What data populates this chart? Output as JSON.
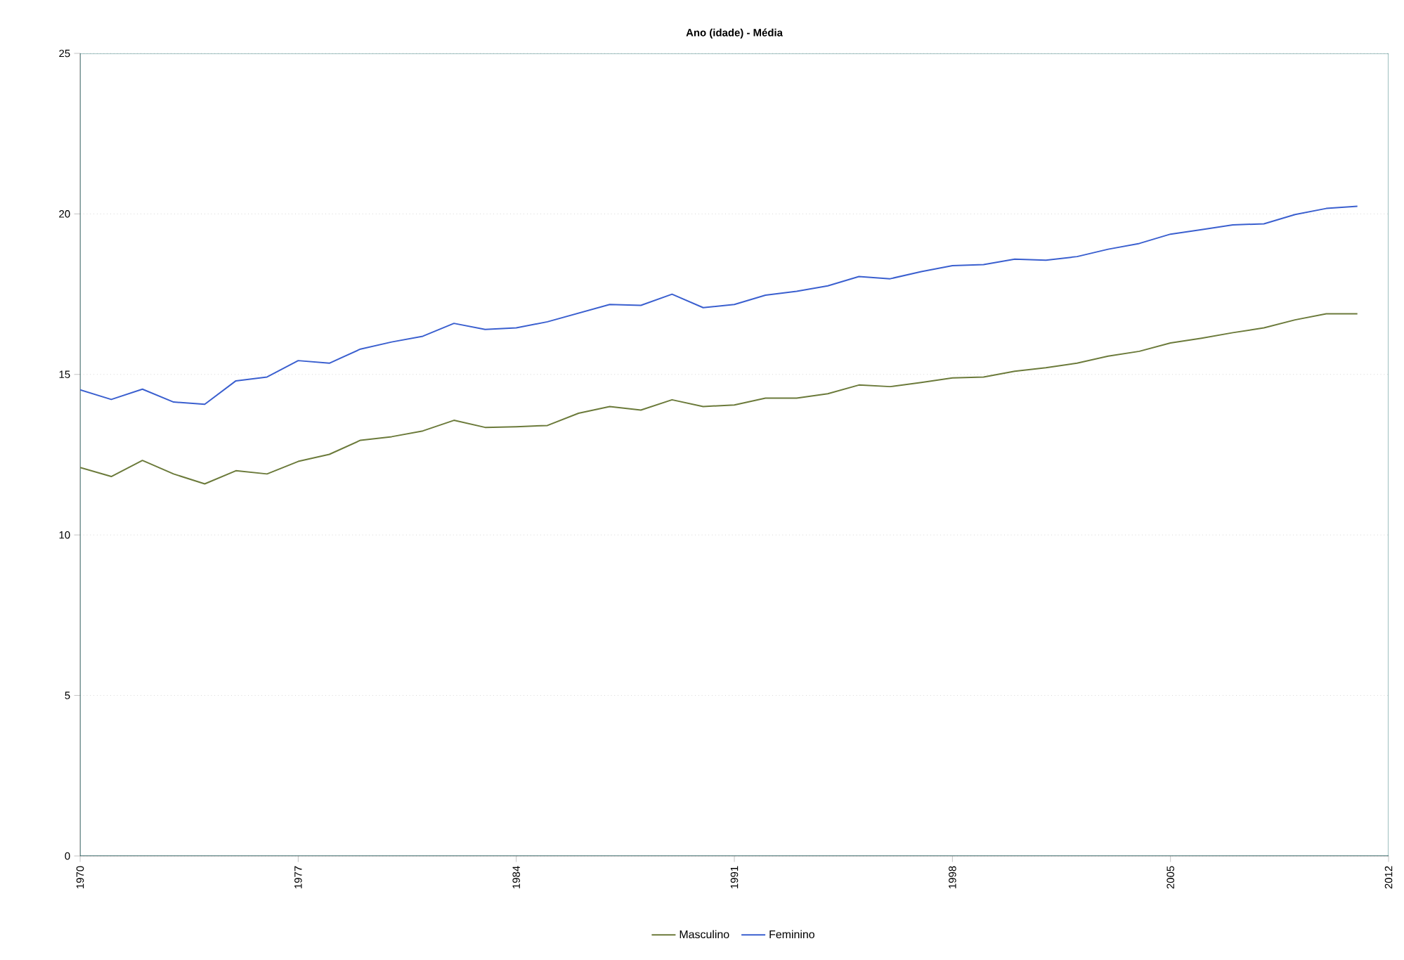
{
  "chart_data": {
    "type": "line",
    "title": "Ano (idade) - Média",
    "x": [
      1970,
      1971,
      1972,
      1973,
      1974,
      1975,
      1976,
      1977,
      1978,
      1979,
      1980,
      1981,
      1982,
      1983,
      1984,
      1985,
      1986,
      1987,
      1988,
      1989,
      1990,
      1991,
      1992,
      1993,
      1994,
      1995,
      1996,
      1997,
      1998,
      1999,
      2000,
      2001,
      2002,
      2003,
      2004,
      2005,
      2006,
      2007,
      2008,
      2009,
      2010,
      2011
    ],
    "series": [
      {
        "name": "Masculino",
        "color": "#6b7a3a",
        "values": [
          12.1,
          11.82,
          12.32,
          11.9,
          11.59,
          12.0,
          11.9,
          12.29,
          12.51,
          12.95,
          13.06,
          13.24,
          13.57,
          13.35,
          13.37,
          13.41,
          13.79,
          14.0,
          13.89,
          14.21,
          14.0,
          14.05,
          14.26,
          14.26,
          14.4,
          14.67,
          14.62,
          14.75,
          14.89,
          14.92,
          15.1,
          15.21,
          15.35,
          15.57,
          15.72,
          15.98,
          16.13,
          16.3,
          16.45,
          16.7,
          16.89,
          16.89
        ]
      },
      {
        "name": "Feminino",
        "color": "#3a5fcf",
        "values": [
          14.52,
          14.22,
          14.54,
          14.14,
          14.07,
          14.8,
          14.92,
          15.43,
          15.35,
          15.79,
          16.01,
          16.19,
          16.59,
          16.4,
          16.45,
          16.64,
          16.91,
          17.18,
          17.15,
          17.5,
          17.08,
          17.18,
          17.47,
          17.59,
          17.76,
          18.05,
          17.98,
          18.2,
          18.39,
          18.42,
          18.59,
          18.56,
          18.67,
          18.9,
          19.08,
          19.37,
          19.51,
          19.66,
          19.69,
          19.98,
          20.17,
          20.24
        ]
      }
    ],
    "xlim": [
      1970,
      2012
    ],
    "xticks": [
      1970,
      1977,
      1984,
      1991,
      1998,
      2005,
      2012
    ],
    "ylim": [
      0,
      25
    ],
    "yticks": [
      0,
      5,
      10,
      15,
      20,
      25
    ],
    "grid": "y",
    "legend": "bottom",
    "marker": "none",
    "line_style": "solid"
  }
}
